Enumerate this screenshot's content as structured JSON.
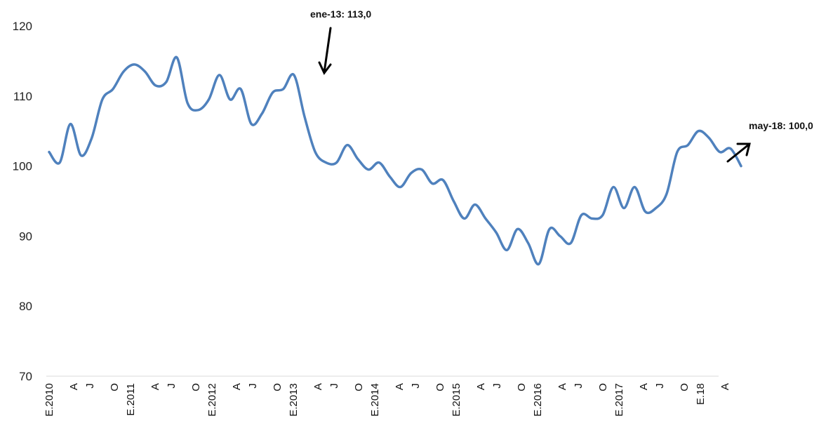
{
  "chart_data": {
    "type": "line",
    "title": "",
    "xlabel": "",
    "ylabel": "",
    "ylim": [
      70,
      120
    ],
    "yticks": [
      "70",
      "80",
      "90",
      "100",
      "110",
      "120"
    ],
    "grid": false,
    "legend": "none",
    "x_labels": [
      {
        "index": 0,
        "text": "E.2010"
      },
      {
        "index": 3,
        "text": "A"
      },
      {
        "index": 5,
        "text": "J"
      },
      {
        "index": 8,
        "text": "O"
      },
      {
        "index": 10,
        "text": "E.2011"
      },
      {
        "index": 13,
        "text": "A"
      },
      {
        "index": 15,
        "text": "J"
      },
      {
        "index": 18,
        "text": "O"
      },
      {
        "index": 20,
        "text": "E.2012"
      },
      {
        "index": 23,
        "text": "A"
      },
      {
        "index": 25,
        "text": "J"
      },
      {
        "index": 28,
        "text": "O"
      },
      {
        "index": 30,
        "text": "E.2013"
      },
      {
        "index": 33,
        "text": "A"
      },
      {
        "index": 35,
        "text": "J"
      },
      {
        "index": 38,
        "text": "O"
      },
      {
        "index": 40,
        "text": "E.2014"
      },
      {
        "index": 43,
        "text": "A"
      },
      {
        "index": 45,
        "text": "J"
      },
      {
        "index": 48,
        "text": "O"
      },
      {
        "index": 50,
        "text": "E.2015"
      },
      {
        "index": 53,
        "text": "A"
      },
      {
        "index": 55,
        "text": "J"
      },
      {
        "index": 58,
        "text": "O"
      },
      {
        "index": 60,
        "text": "E.2016"
      },
      {
        "index": 63,
        "text": "A"
      },
      {
        "index": 65,
        "text": "J"
      },
      {
        "index": 68,
        "text": "O"
      },
      {
        "index": 70,
        "text": "E.2017"
      },
      {
        "index": 73,
        "text": "A"
      },
      {
        "index": 75,
        "text": "J"
      },
      {
        "index": 78,
        "text": "O"
      },
      {
        "index": 80,
        "text": "E.18"
      },
      {
        "index": 83,
        "text": "A"
      }
    ],
    "series": [
      {
        "color": "#4f81bd",
        "values": [
          102.0,
          100.5,
          106.0,
          101.5,
          104.0,
          109.5,
          111.0,
          113.5,
          114.5,
          113.5,
          111.5,
          112.0,
          115.5,
          109.0,
          108.0,
          109.5,
          113.0,
          109.5,
          111.0,
          106.0,
          107.5,
          110.5,
          111.0,
          113.0,
          107.0,
          102.0,
          100.5,
          100.5,
          103.0,
          101.0,
          99.5,
          100.5,
          98.5,
          97.0,
          99.0,
          99.5,
          97.5,
          98.0,
          95.0,
          92.5,
          94.5,
          92.5,
          90.5,
          88.0,
          91.0,
          89.0,
          86.0,
          91.0,
          90.0,
          89.0,
          93.0,
          92.5,
          93.0,
          97.0,
          94.0,
          97.0,
          93.5,
          94.0,
          96.0,
          102.0,
          103.0,
          105.0,
          104.0,
          102.0,
          102.5,
          100.0
        ]
      }
    ],
    "annotations": [
      {
        "text": "ene-13: 113,0",
        "index": 30,
        "value": 113.0
      },
      {
        "text": "may-18: 100,0",
        "index": 85,
        "value": 100.0
      }
    ]
  },
  "colors": {
    "line": "#4f81bd",
    "axis": "#d9d9d9",
    "arrow": "#000000"
  }
}
